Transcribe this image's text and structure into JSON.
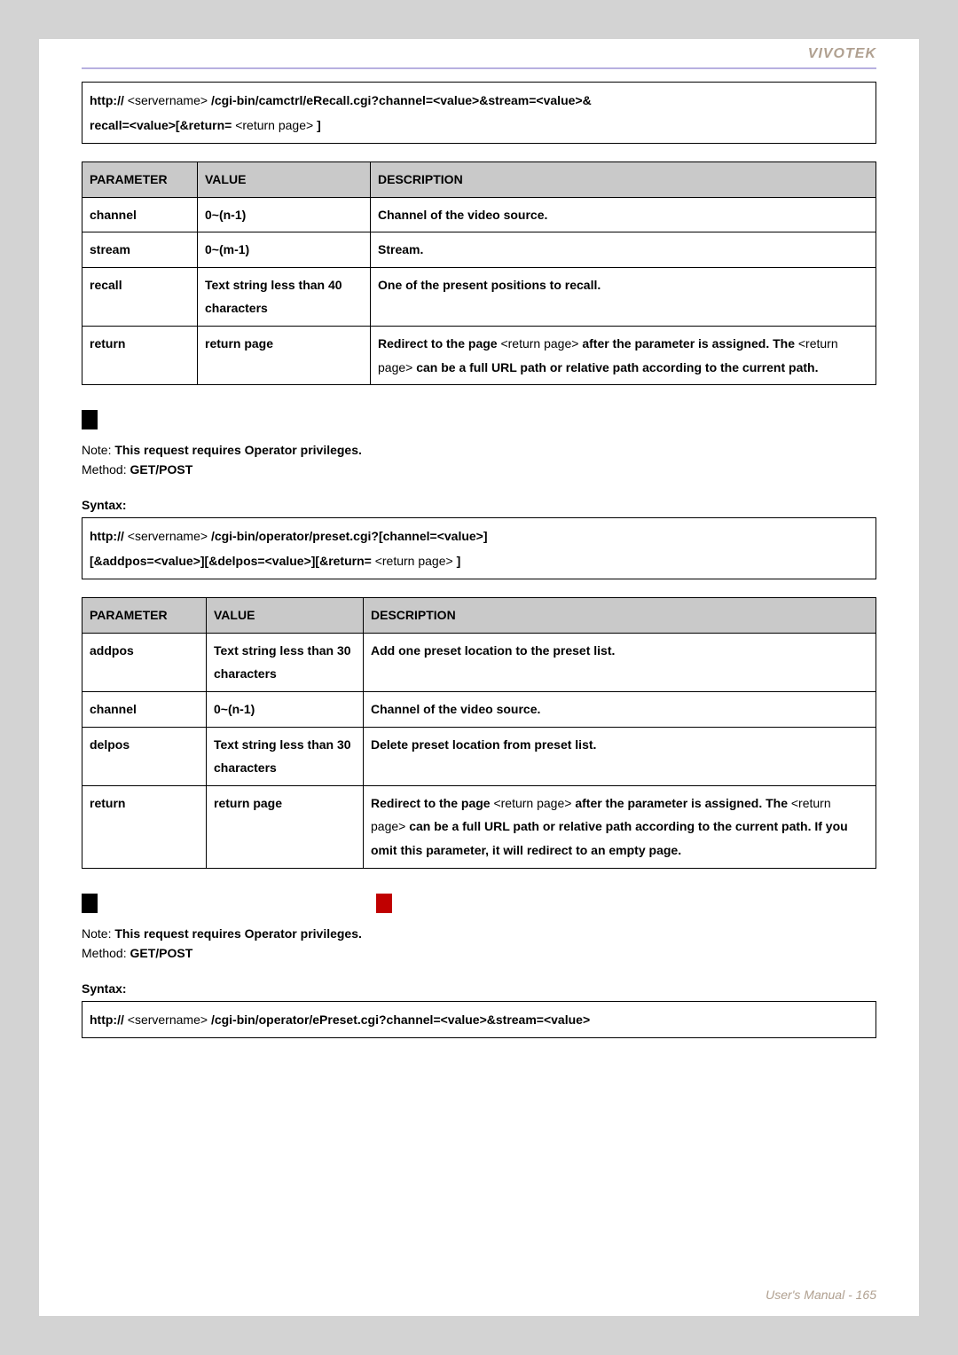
{
  "brand": "VIVOTEK",
  "footer": "User's Manual - 165",
  "colors": {
    "page_bg": "#d3d3d3",
    "content_bg": "#ffffff",
    "brand_text": "#b0a090",
    "rule": "#b8b0e0",
    "table_header_bg": "#c9c9c9",
    "marker_black": "#000000",
    "marker_red": "#c00000",
    "footer_text": "#b0a090"
  },
  "syntax1": {
    "p1_a": "http://",
    "p1_b": "<servername>",
    "p1_c": "/cgi-bin/camctrl/eRecall.cgi?channel=<value>&stream=<value>&",
    "p2_a": "recall=<value>[&return=",
    "p2_b": "<return page>",
    "p2_c": "]"
  },
  "table1": {
    "h1": "PARAMETER",
    "h2": "VALUE",
    "h3": "DESCRIPTION",
    "rows": [
      {
        "p": "channel",
        "v": "0~(n-1)",
        "d": "Channel of the video source."
      },
      {
        "p": "stream",
        "v": "0~(m-1)",
        "d": "Stream."
      },
      {
        "p": "recall",
        "v": "Text string less than 40 characters",
        "d": "One of the present positions to recall."
      }
    ],
    "row_return": {
      "p": "return",
      "v": "return page",
      "d_b1": "Redirect to the page ",
      "d_n1": "<return page>",
      "d_b2": " after the parameter is assigned",
      "d_b3": ". The ",
      "d_n2": "<return page>",
      "d_b4": " can be a full URL path or relative path according to the current path."
    }
  },
  "note1": {
    "prefix": "Note: ",
    "text": "This request requires Operator privileges."
  },
  "method1": {
    "prefix": "Method: ",
    "text": "GET/POST"
  },
  "syntax_label": "Syntax:",
  "syntax2": {
    "p1_a": "http://",
    "p1_b": "<servername>",
    "p1_c": "/cgi-bin/operator/preset.cgi?[channel=<value>]",
    "p2_a": "[&addpos=<value>][&delpos=<value>][&return=",
    "p2_b": "<return page>",
    "p2_c": "]"
  },
  "table2": {
    "h1": "PARAMETER",
    "h2": "VALUE",
    "h3": "DESCRIPTION",
    "rows": [
      {
        "p": "addpos",
        "v": "Text string less than 30 characters",
        "d": "Add one preset location to the preset list."
      },
      {
        "p": "channel",
        "v": "0~(n-1)",
        "d": "Channel of the video source."
      },
      {
        "p": "delpos",
        "v": "Text string less than 30 characters",
        "d": "Delete preset location from preset list."
      }
    ],
    "row_return": {
      "p": "return",
      "v": "return page",
      "d_b1": "Redirect to the page ",
      "d_n1": "<return page>",
      "d_b2": " after the parameter is assigned",
      "d_b3": ". The ",
      "d_n2": "<return page>",
      "d_b4": " can be a full URL path or relative path according to the current path. If you omit this parameter, it will redirect to an empty page."
    }
  },
  "note2": {
    "prefix": "Note: ",
    "text": "This request requires Operator privileges."
  },
  "method2": {
    "prefix": "Method: ",
    "text": "GET/POST"
  },
  "syntax3": {
    "p1_a": "http://",
    "p1_b": "<servername>",
    "p1_c": "/cgi-bin/operator/ePreset.cgi?channel=<value>&stream=<value>"
  }
}
